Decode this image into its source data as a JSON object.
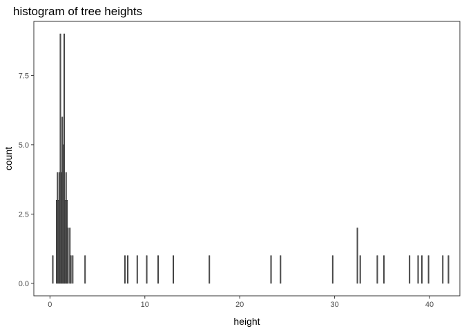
{
  "chart_data": {
    "type": "bar",
    "title": "histogram of tree heights",
    "xlabel": "height",
    "ylabel": "count",
    "xlim": [
      -1.7,
      43.2
    ],
    "ylim": [
      -0.45,
      9.45
    ],
    "x_ticks": [
      0,
      10,
      20,
      30,
      40
    ],
    "y_ticks": [
      0.0,
      2.5,
      5.0,
      7.5
    ],
    "y_tick_labels": [
      "0.0",
      "2.5",
      "5.0",
      "7.5"
    ],
    "bin_width": 0.1,
    "grid": false,
    "bins": [
      {
        "x": 0.3,
        "count": 1
      },
      {
        "x": 0.7,
        "count": 3
      },
      {
        "x": 0.8,
        "count": 4
      },
      {
        "x": 0.9,
        "count": 3
      },
      {
        "x": 1.0,
        "count": 4
      },
      {
        "x": 1.1,
        "count": 9
      },
      {
        "x": 1.2,
        "count": 4
      },
      {
        "x": 1.3,
        "count": 6
      },
      {
        "x": 1.4,
        "count": 5
      },
      {
        "x": 1.5,
        "count": 9
      },
      {
        "x": 1.6,
        "count": 3
      },
      {
        "x": 1.7,
        "count": 4
      },
      {
        "x": 1.8,
        "count": 3
      },
      {
        "x": 1.9,
        "count": 2
      },
      {
        "x": 2.1,
        "count": 2
      },
      {
        "x": 2.2,
        "count": 1
      },
      {
        "x": 2.4,
        "count": 1
      },
      {
        "x": 3.7,
        "count": 1
      },
      {
        "x": 7.9,
        "count": 1
      },
      {
        "x": 8.2,
        "count": 1
      },
      {
        "x": 9.2,
        "count": 1
      },
      {
        "x": 10.2,
        "count": 1
      },
      {
        "x": 11.4,
        "count": 1
      },
      {
        "x": 13.0,
        "count": 1
      },
      {
        "x": 16.8,
        "count": 1
      },
      {
        "x": 23.3,
        "count": 1
      },
      {
        "x": 24.3,
        "count": 1
      },
      {
        "x": 29.8,
        "count": 1
      },
      {
        "x": 32.4,
        "count": 2
      },
      {
        "x": 32.7,
        "count": 1
      },
      {
        "x": 34.5,
        "count": 1
      },
      {
        "x": 35.2,
        "count": 1
      },
      {
        "x": 37.9,
        "count": 1
      },
      {
        "x": 38.8,
        "count": 1
      },
      {
        "x": 39.2,
        "count": 1
      },
      {
        "x": 39.9,
        "count": 1
      },
      {
        "x": 41.4,
        "count": 1
      },
      {
        "x": 42.0,
        "count": 1
      }
    ]
  }
}
